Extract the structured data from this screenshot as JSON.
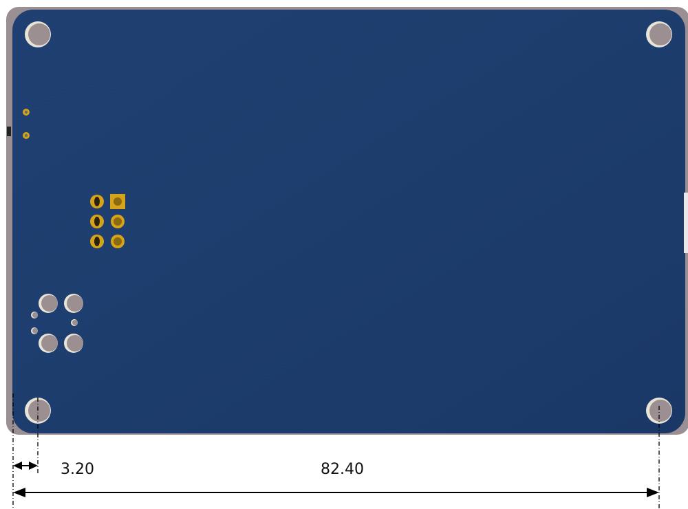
{
  "dimensions": {
    "edge_to_hole_label": "3.20",
    "hole_to_hole_label": "82.40"
  },
  "colors": {
    "solder_mask": "#1f3f72",
    "board_edge": "#9a8f93",
    "hole_fill": "#9c8f92",
    "hole_highlight": "#e8e4d8",
    "pad_gold": "#d6a416",
    "pad_dark": "#2a2210",
    "background": "#ffffff",
    "dimension_line": "#000000"
  },
  "components": {
    "header_pin_count": 6,
    "pin1_shape": "square",
    "connector_large_holes": 4,
    "connector_small_holes": 3,
    "mounting_holes": 4
  }
}
